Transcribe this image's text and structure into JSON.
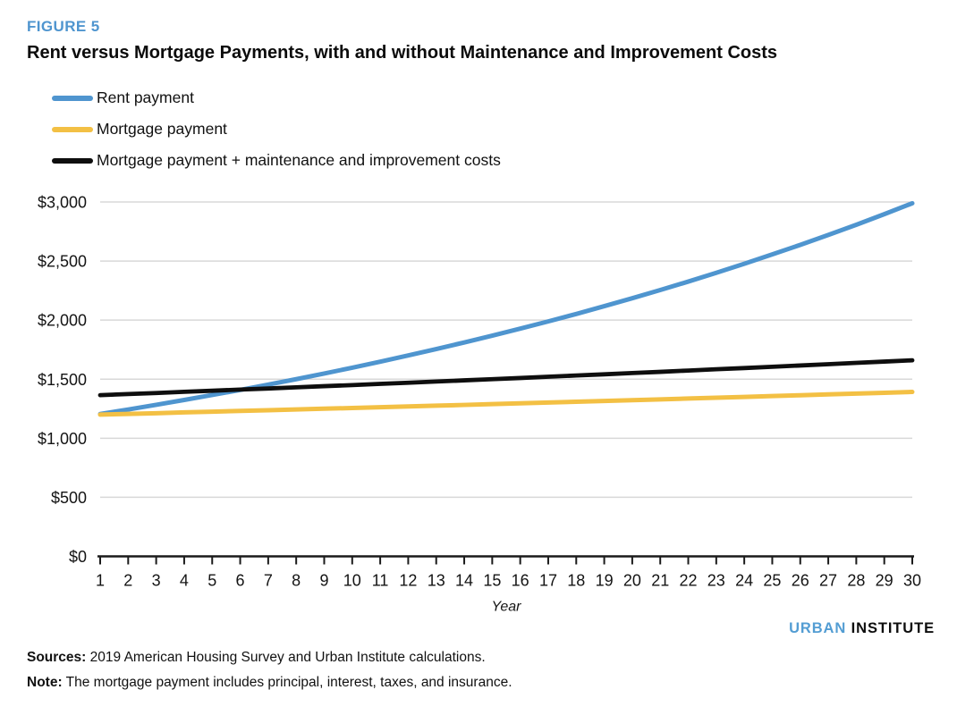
{
  "figure_label": "FIGURE 5",
  "colors": {
    "accent_blue": "#4f95cf",
    "gridline": "#d8d8d8",
    "axis": "#1a1a1a",
    "logo_urban": "#539dd3",
    "logo_institute": "#0d0d0d"
  },
  "legend": [
    {
      "label": "Rent payment",
      "color": "#4f95cf"
    },
    {
      "label": "Mortgage payment",
      "color": "#f3c044"
    },
    {
      "label": "Mortgage payment + maintenance and improvement costs",
      "color": "#0e0e0e"
    }
  ],
  "chart_data": {
    "type": "line",
    "title": "Rent versus Mortgage Payments, with and without Maintenance and Improvement Costs",
    "xlabel": "Year",
    "ylabel": "",
    "x": [
      1,
      2,
      3,
      4,
      5,
      6,
      7,
      8,
      9,
      10,
      11,
      12,
      13,
      14,
      15,
      16,
      17,
      18,
      19,
      20,
      21,
      22,
      23,
      24,
      25,
      26,
      27,
      28,
      29,
      30
    ],
    "ylim": [
      0,
      3000
    ],
    "yticks": [
      0,
      500,
      1000,
      1500,
      2000,
      2500,
      3000
    ],
    "ytick_labels": [
      "$0",
      "$500",
      "$1,000",
      "$1,500",
      "$2,000",
      "$2,500",
      "$3,000"
    ],
    "grid": true,
    "legend_position": "top-left",
    "series": [
      {
        "id": "rent-payment",
        "name": "Rent payment",
        "color": "#4f95cf",
        "width": 5,
        "values": [
          1205,
          1243,
          1283,
          1324,
          1366,
          1409,
          1454,
          1500,
          1548,
          1597,
          1648,
          1701,
          1755,
          1811,
          1868,
          1928,
          1989,
          2052,
          2118,
          2185,
          2255,
          2326,
          2400,
          2477,
          2556,
          2637,
          2721,
          2807,
          2897,
          2989
        ]
      },
      {
        "id": "mortgage-payment",
        "name": "Mortgage payment",
        "color": "#f3c044",
        "width": 5,
        "values": [
          1200,
          1206,
          1212,
          1219,
          1225,
          1231,
          1237,
          1244,
          1250,
          1256,
          1263,
          1269,
          1276,
          1282,
          1289,
          1296,
          1302,
          1309,
          1316,
          1322,
          1329,
          1336,
          1343,
          1350,
          1357,
          1364,
          1371,
          1378,
          1385,
          1392
        ]
      },
      {
        "id": "mortgage-plus-maintenance",
        "name": "Mortgage payment + maintenance and improvement costs",
        "color": "#0e0e0e",
        "width": 4.8,
        "values": [
          1365,
          1374,
          1383,
          1393,
          1402,
          1412,
          1421,
          1431,
          1441,
          1450,
          1460,
          1470,
          1480,
          1490,
          1500,
          1510,
          1521,
          1531,
          1541,
          1552,
          1562,
          1573,
          1584,
          1594,
          1605,
          1616,
          1627,
          1638,
          1649,
          1660
        ]
      }
    ]
  },
  "footer": {
    "sources_label": "Sources:",
    "sources_text": "2019 American Housing Survey and Urban Institute calculations.",
    "note_label": "Note:",
    "note_text": "The mortgage payment includes principal, interest, taxes, and insurance.",
    "logo": {
      "part1": "URBAN",
      "part2": "INSTITUTE"
    }
  }
}
